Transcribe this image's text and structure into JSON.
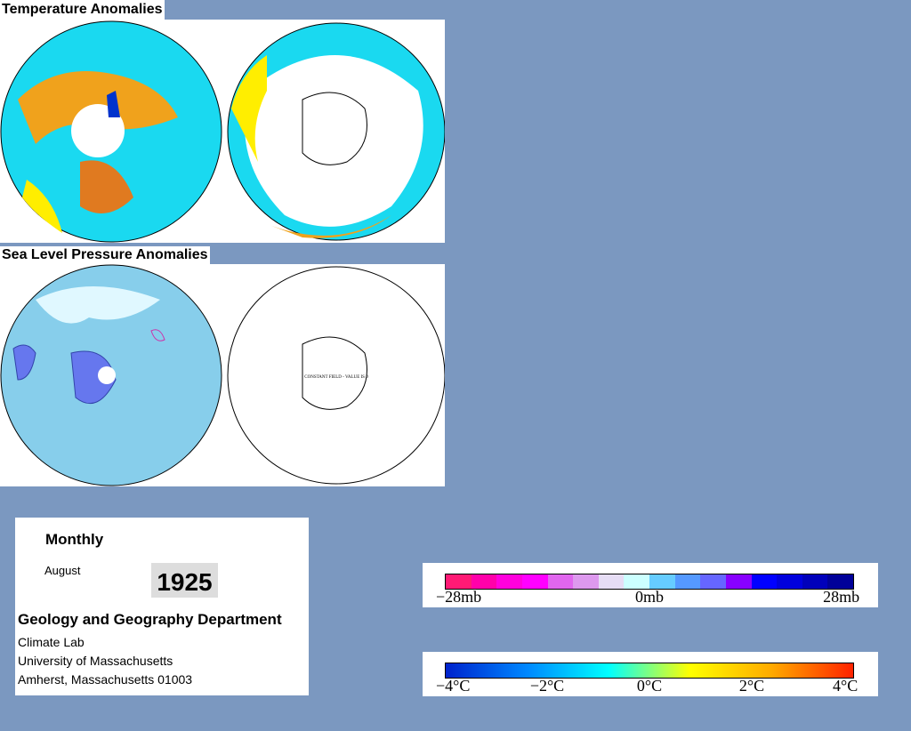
{
  "panels": [
    {
      "title": "Temperature Anomalies"
    },
    {
      "title": "Sea Level Pressure Anomalies",
      "note": "CONSTANT FIELD - VALUE IS 0"
    }
  ],
  "info": {
    "period": "Monthly",
    "month": "August",
    "year": "1925",
    "department": "Geology and Geography Department",
    "lines": [
      "Climate Lab",
      "University of Massachusetts",
      "Amherst, Massachusetts 01003"
    ]
  },
  "legends": [
    {
      "labels": [
        "−28mb",
        "0mb",
        "28mb"
      ],
      "colors": [
        "#ff1a75",
        "#ff00aa",
        "#ff00dd",
        "#ff00ff",
        "#e066ee",
        "#dd99ee",
        "#e6ddf5",
        "#ccffff",
        "#66ccff",
        "#5599ff",
        "#6666ff",
        "#8800ff",
        "#0000ff",
        "#0000dd",
        "#0000bb",
        "#000099"
      ]
    },
    {
      "labels": [
        "−4°C",
        "−2°C",
        "0°C",
        "2°C",
        "4°C"
      ],
      "colors": [
        "#0022cc",
        "#0088ff",
        "#00ffff",
        "#ffff00",
        "#ffaa00",
        "#ff2200"
      ]
    }
  ]
}
